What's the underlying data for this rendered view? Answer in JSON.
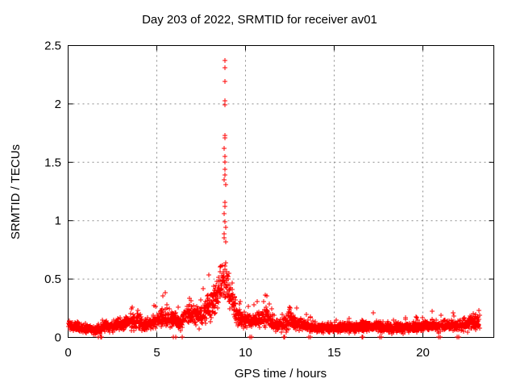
{
  "chart_data": {
    "type": "scatter",
    "title": "Day 203 of 2022, SRMTID for receiver av01",
    "xlabel": "GPS time / hours",
    "ylabel": "SRMTID / TECUs",
    "series_name": "SRMTID",
    "xlim": [
      0,
      24
    ],
    "ylim": [
      0,
      2.5
    ],
    "xticks": {
      "values": [
        0,
        5,
        10,
        15,
        20
      ],
      "labels": [
        "0",
        "5",
        "10",
        "15",
        "20"
      ]
    },
    "yticks": {
      "values": [
        0,
        0.5,
        1,
        1.5,
        2,
        2.5
      ],
      "labels": [
        "0",
        "0.5",
        "1",
        "1.5",
        "2",
        "2.5"
      ]
    },
    "grid": {
      "visible": true,
      "style": "dotted",
      "color": "#8c8c8c"
    },
    "marker": {
      "shape": "plus",
      "color": "#ff0000",
      "size": 7
    },
    "colors": {
      "marker": "#ff0000",
      "border": "#000000",
      "background": "#ffffff"
    },
    "sampling": {
      "n_points": 2400,
      "x_start": 0.01,
      "x_end": 23.2
    },
    "envelope_comment": "each entry: [gps_hour, mean_TECU, spread_TECU, max_TECU] estimated from plot",
    "envelope": [
      [
        0.0,
        0.12,
        0.05,
        0.23
      ],
      [
        0.25,
        0.1,
        0.04,
        0.18
      ],
      [
        0.7,
        0.08,
        0.04,
        0.15
      ],
      [
        1.2,
        0.07,
        0.04,
        0.14
      ],
      [
        1.7,
        0.06,
        0.04,
        0.13
      ],
      [
        2.1,
        0.1,
        0.05,
        0.2
      ],
      [
        2.5,
        0.09,
        0.04,
        0.18
      ],
      [
        3.0,
        0.11,
        0.05,
        0.22
      ],
      [
        3.5,
        0.13,
        0.06,
        0.26
      ],
      [
        3.95,
        0.15,
        0.07,
        0.31
      ],
      [
        4.35,
        0.1,
        0.05,
        0.2
      ],
      [
        4.8,
        0.13,
        0.06,
        0.27
      ],
      [
        5.2,
        0.16,
        0.07,
        0.33
      ],
      [
        5.6,
        0.18,
        0.09,
        0.44
      ],
      [
        6.0,
        0.15,
        0.08,
        0.38
      ],
      [
        6.35,
        0.12,
        0.06,
        0.25
      ],
      [
        6.75,
        0.22,
        0.1,
        0.53
      ],
      [
        7.1,
        0.2,
        0.09,
        0.45
      ],
      [
        7.45,
        0.18,
        0.08,
        0.38
      ],
      [
        7.8,
        0.24,
        0.1,
        0.5
      ],
      [
        8.15,
        0.3,
        0.13,
        0.8
      ],
      [
        8.5,
        0.38,
        0.15,
        0.78
      ],
      [
        8.8,
        0.48,
        0.16,
        0.8
      ],
      [
        9.0,
        0.45,
        0.15,
        0.78
      ],
      [
        9.2,
        0.35,
        0.13,
        0.77
      ],
      [
        9.5,
        0.22,
        0.09,
        0.45
      ],
      [
        9.8,
        0.16,
        0.07,
        0.33
      ],
      [
        10.3,
        0.14,
        0.06,
        0.28
      ],
      [
        10.8,
        0.15,
        0.07,
        0.32
      ],
      [
        11.2,
        0.18,
        0.09,
        0.45
      ],
      [
        11.5,
        0.13,
        0.06,
        0.27
      ],
      [
        11.9,
        0.1,
        0.05,
        0.22
      ],
      [
        12.2,
        0.1,
        0.05,
        0.2
      ],
      [
        12.45,
        0.16,
        0.09,
        0.42
      ],
      [
        12.8,
        0.12,
        0.06,
        0.26
      ],
      [
        13.3,
        0.1,
        0.05,
        0.22
      ],
      [
        14.0,
        0.08,
        0.04,
        0.18
      ],
      [
        15.0,
        0.08,
        0.04,
        0.17
      ],
      [
        16.0,
        0.08,
        0.04,
        0.17
      ],
      [
        16.8,
        0.1,
        0.05,
        0.26
      ],
      [
        17.5,
        0.09,
        0.04,
        0.2
      ],
      [
        18.2,
        0.09,
        0.05,
        0.21
      ],
      [
        19.0,
        0.08,
        0.04,
        0.18
      ],
      [
        19.8,
        0.09,
        0.04,
        0.19
      ],
      [
        20.6,
        0.1,
        0.05,
        0.25
      ],
      [
        21.2,
        0.1,
        0.05,
        0.22
      ],
      [
        21.8,
        0.1,
        0.05,
        0.21
      ],
      [
        22.4,
        0.11,
        0.05,
        0.23
      ],
      [
        22.9,
        0.13,
        0.06,
        0.28
      ],
      [
        23.2,
        0.14,
        0.07,
        0.26
      ]
    ],
    "peak_points": [
      [
        8.82,
        2.37
      ],
      [
        8.82,
        2.31
      ],
      [
        8.83,
        2.19
      ],
      [
        8.85,
        2.03
      ],
      [
        8.82,
        1.99
      ],
      [
        8.86,
        1.73
      ],
      [
        8.82,
        1.71
      ],
      [
        8.81,
        1.62
      ],
      [
        8.83,
        1.55
      ],
      [
        8.85,
        1.5
      ],
      [
        8.82,
        1.44
      ],
      [
        8.86,
        1.39
      ],
      [
        8.8,
        1.35
      ],
      [
        8.87,
        1.31
      ],
      [
        8.83,
        1.16
      ],
      [
        8.82,
        1.12
      ],
      [
        8.81,
        1.06
      ],
      [
        8.84,
        0.99
      ],
      [
        8.87,
        0.94
      ],
      [
        8.8,
        0.89
      ],
      [
        8.78,
        0.85
      ],
      [
        8.88,
        0.82
      ]
    ],
    "zero_points": [
      1.72,
      1.83,
      1.85,
      1.87,
      5.95,
      6.05,
      6.45,
      10.25,
      10.32,
      12.18,
      12.2,
      12.22,
      13.55,
      13.65,
      16.55,
      16.62,
      17.55,
      17.65,
      20.9,
      20.97,
      21.95,
      22.02
    ]
  }
}
